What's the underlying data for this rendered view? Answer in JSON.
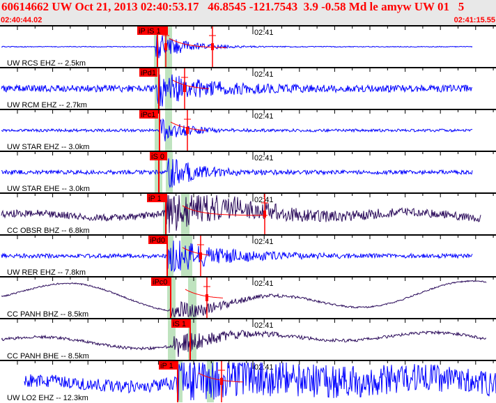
{
  "header": {
    "title": "60614662 UW Oct 21, 2013 02:40:53.17   46.8545 -121.7543  3.9 -0.58 Md le amyw UW 01   5",
    "start_time": "02:40:44.02",
    "end_time": "02:41:15.55"
  },
  "chart_data": {
    "type": "line",
    "title": "",
    "x_axis": {
      "start": "02:40:44.02",
      "end": "02:41:15.55",
      "tick_label": "02:41"
    },
    "colors": {
      "uw_trace": "#0000ff",
      "cc_trace": "#2a0a5a",
      "pick": "#ff0000",
      "pick_window": "#bfe3bf",
      "header_bg": "#e8e8e8"
    },
    "traces": [
      {
        "label": "UW RCS EHZ -- 2.5km",
        "pick": "iP iS 1",
        "network": "UW"
      },
      {
        "label": "UW RCM EHZ -- 2.7km",
        "pick": "iPd1",
        "network": "UW"
      },
      {
        "label": "UW STAR EHZ -- 3.0km",
        "pick": "iPc1",
        "network": "UW"
      },
      {
        "label": "UW STAR EHE -- 3.0km",
        "pick": "iS 0",
        "network": "UW"
      },
      {
        "label": "CC OBSR BHZ -- 6.8km",
        "pick": "iP 1",
        "network": "CC"
      },
      {
        "label": "UW RER EHZ -- 7.8km",
        "pick": "iPd0",
        "network": "UW"
      },
      {
        "label": "CC PANH BHZ -- 8.5km",
        "pick": "iPc0",
        "network": "CC"
      },
      {
        "label": "CC PANH BHE -- 8.5km",
        "pick": "iS 1",
        "network": "CC"
      },
      {
        "label": "UW LO2 EHZ -- 12.3km",
        "pick": "iP 1",
        "network": "UW"
      }
    ]
  }
}
